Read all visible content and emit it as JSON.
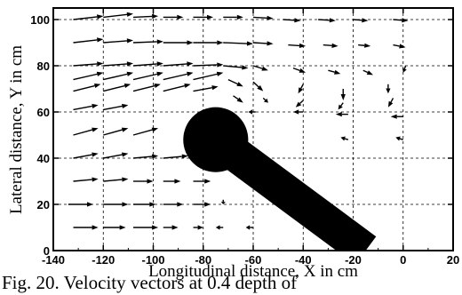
{
  "chart_data": {
    "type": "quiver",
    "xlabel": "Longitudinal distance, X in cm",
    "ylabel": "Lateral distance, Y in cm",
    "xlim": [
      -140,
      20
    ],
    "ylim": [
      0,
      105
    ],
    "xticks": [
      -140,
      -120,
      -100,
      -80,
      -60,
      -40,
      -20,
      0,
      20
    ],
    "xtick_labels": [
      "-140",
      "-120",
      "-100",
      "-80",
      "-60",
      "-40",
      "-20",
      "0",
      "20"
    ],
    "yticks": [
      0,
      20,
      40,
      60,
      80,
      100
    ],
    "ytick_labels": [
      "0",
      "20",
      "40",
      "60",
      "80",
      "100"
    ],
    "grid": "dashed",
    "obstacle": {
      "circle": {
        "cx": -75,
        "cy": 48,
        "r": 13
      },
      "bar": {
        "from": [
          -75,
          48
        ],
        "to": [
          -15,
          0
        ],
        "width": 14
      }
    },
    "vectors": [
      {
        "x": -132,
        "y": 100,
        "u": 12,
        "v": 1.5
      },
      {
        "x": -120,
        "y": 101,
        "u": 12,
        "v": 1.5
      },
      {
        "x": -108,
        "y": 101,
        "u": 10,
        "v": 0.5
      },
      {
        "x": -96,
        "y": 101,
        "u": 8,
        "v": 0
      },
      {
        "x": -84,
        "y": 101,
        "u": 8,
        "v": 0
      },
      {
        "x": -72,
        "y": 101,
        "u": 8,
        "v": 0
      },
      {
        "x": -60,
        "y": 101,
        "u": 8,
        "v": -0.5
      },
      {
        "x": -48,
        "y": 100,
        "u": 7,
        "v": -0.5
      },
      {
        "x": -34,
        "y": 100,
        "u": 7,
        "v": -0.5
      },
      {
        "x": -20,
        "y": 100,
        "u": 6,
        "v": -0.5
      },
      {
        "x": -4,
        "y": 100,
        "u": 6,
        "v": -0.5
      },
      {
        "x": -132,
        "y": 90,
        "u": 12,
        "v": 1.5
      },
      {
        "x": -120,
        "y": 90,
        "u": 12,
        "v": 1
      },
      {
        "x": -108,
        "y": 90,
        "u": 12,
        "v": 0.5
      },
      {
        "x": -96,
        "y": 90,
        "u": 12,
        "v": 0
      },
      {
        "x": -84,
        "y": 90,
        "u": 12,
        "v": 0
      },
      {
        "x": -72,
        "y": 90,
        "u": 12,
        "v": -0.5
      },
      {
        "x": -60,
        "y": 90,
        "u": 8,
        "v": -0.5
      },
      {
        "x": -46,
        "y": 89,
        "u": 7,
        "v": -0.5
      },
      {
        "x": -32,
        "y": 89,
        "u": 6,
        "v": -0.5
      },
      {
        "x": -18,
        "y": 89,
        "u": 5,
        "v": -0.5
      },
      {
        "x": -4,
        "y": 89,
        "u": 5,
        "v": -1
      },
      {
        "x": -132,
        "y": 80,
        "u": 12,
        "v": 1
      },
      {
        "x": -120,
        "y": 80,
        "u": 12,
        "v": 1
      },
      {
        "x": -108,
        "y": 80,
        "u": 12,
        "v": 1
      },
      {
        "x": -96,
        "y": 80,
        "u": 12,
        "v": 1
      },
      {
        "x": -84,
        "y": 80,
        "u": 12,
        "v": 0.5
      },
      {
        "x": -72,
        "y": 80,
        "u": 10,
        "v": -1
      },
      {
        "x": -60,
        "y": 80,
        "u": 6,
        "v": -2
      },
      {
        "x": -44,
        "y": 79,
        "u": 5,
        "v": -2
      },
      {
        "x": -30,
        "y": 78,
        "u": 5,
        "v": -1.5
      },
      {
        "x": -16,
        "y": 78,
        "u": 4,
        "v": -2
      },
      {
        "x": 1,
        "y": 80,
        "u": -1,
        "v": -3
      },
      {
        "x": -132,
        "y": 74,
        "u": 12,
        "v": 3
      },
      {
        "x": -120,
        "y": 74,
        "u": 12,
        "v": 3
      },
      {
        "x": -108,
        "y": 74,
        "u": 12,
        "v": 3
      },
      {
        "x": -96,
        "y": 74,
        "u": 12,
        "v": 3
      },
      {
        "x": -84,
        "y": 74,
        "u": 12,
        "v": 3
      },
      {
        "x": -70,
        "y": 74,
        "u": 6,
        "v": -3
      },
      {
        "x": -60,
        "y": 73,
        "u": 4,
        "v": -4
      },
      {
        "x": -40,
        "y": 72,
        "u": -2,
        "v": -4
      },
      {
        "x": -24,
        "y": 70,
        "u": 0,
        "v": -5
      },
      {
        "x": -6,
        "y": 72,
        "u": 0,
        "v": -4
      },
      {
        "x": -132,
        "y": 69,
        "u": 11,
        "v": 3
      },
      {
        "x": -120,
        "y": 69,
        "u": 11,
        "v": 3
      },
      {
        "x": -108,
        "y": 69,
        "u": 11,
        "v": 3
      },
      {
        "x": -96,
        "y": 69,
        "u": 11,
        "v": 3
      },
      {
        "x": -84,
        "y": 69,
        "u": 10,
        "v": 2
      },
      {
        "x": -68,
        "y": 67,
        "u": 4,
        "v": -3
      },
      {
        "x": -56,
        "y": 66,
        "u": 2,
        "v": -2
      },
      {
        "x": -40,
        "y": 65,
        "u": -3,
        "v": -3
      },
      {
        "x": -24,
        "y": 64,
        "u": -2,
        "v": -3
      },
      {
        "x": -4,
        "y": 66,
        "u": -2,
        "v": -4
      },
      {
        "x": -132,
        "y": 61,
        "u": 10,
        "v": 2
      },
      {
        "x": -120,
        "y": 61,
        "u": 10,
        "v": 2
      },
      {
        "x": -59,
        "y": 60,
        "u": -3,
        "v": 0
      },
      {
        "x": -40,
        "y": 60,
        "u": -4,
        "v": 0
      },
      {
        "x": -22,
        "y": 59,
        "u": -5,
        "v": 0
      },
      {
        "x": 0,
        "y": 58,
        "u": -5,
        "v": 0
      },
      {
        "x": -132,
        "y": 50,
        "u": 10,
        "v": 3
      },
      {
        "x": -120,
        "y": 50,
        "u": 10,
        "v": 3
      },
      {
        "x": -108,
        "y": 50,
        "u": 10,
        "v": 3
      },
      {
        "x": -22,
        "y": 48,
        "u": -3,
        "v": 1
      },
      {
        "x": 0,
        "y": 48,
        "u": -3,
        "v": 1
      },
      {
        "x": -132,
        "y": 40,
        "u": 10,
        "v": 2
      },
      {
        "x": -120,
        "y": 40,
        "u": 10,
        "v": 2
      },
      {
        "x": -108,
        "y": 40,
        "u": 10,
        "v": 1
      },
      {
        "x": -96,
        "y": 40,
        "u": 10,
        "v": 1
      },
      {
        "x": -132,
        "y": 30,
        "u": 10,
        "v": 1
      },
      {
        "x": -120,
        "y": 30,
        "u": 10,
        "v": 1
      },
      {
        "x": -108,
        "y": 30,
        "u": 8,
        "v": 0
      },
      {
        "x": -96,
        "y": 30,
        "u": 7,
        "v": 0
      },
      {
        "x": -84,
        "y": 30,
        "u": 7,
        "v": 0
      },
      {
        "x": -134,
        "y": 20,
        "u": 10,
        "v": 0
      },
      {
        "x": -120,
        "y": 20,
        "u": 10,
        "v": 0
      },
      {
        "x": -108,
        "y": 20,
        "u": 9,
        "v": 0
      },
      {
        "x": -96,
        "y": 20,
        "u": 8,
        "v": 0
      },
      {
        "x": -84,
        "y": 20,
        "u": 7,
        "v": 0
      },
      {
        "x": -72,
        "y": 22,
        "u": 0,
        "v": -2
      },
      {
        "x": -132,
        "y": 10,
        "u": 10,
        "v": 0
      },
      {
        "x": -120,
        "y": 10,
        "u": 9,
        "v": 0
      },
      {
        "x": -108,
        "y": 10,
        "u": 10,
        "v": 0
      },
      {
        "x": -96,
        "y": 10,
        "u": 6,
        "v": 0
      },
      {
        "x": -84,
        "y": 10,
        "u": 4,
        "v": 0
      },
      {
        "x": -72,
        "y": 10,
        "u": -3,
        "v": 0
      },
      {
        "x": -60,
        "y": 10,
        "u": -3,
        "v": 0
      }
    ]
  },
  "caption": "Fig. 20. Velocity vectors at 0.4 depth of"
}
